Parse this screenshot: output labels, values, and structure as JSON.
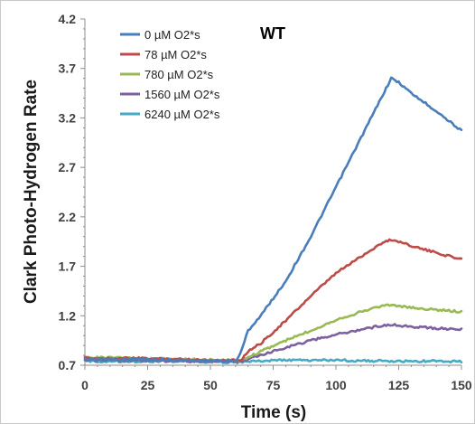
{
  "chart_data": {
    "type": "line",
    "title": "WT",
    "xlabel": "Time (s)",
    "ylabel": "Clark Photo-Hydrogen Rate",
    "xlim": [
      0,
      150
    ],
    "ylim": [
      0.7,
      4.2
    ],
    "xticks": [
      "0",
      "25",
      "50",
      "75",
      "100",
      "125",
      "150"
    ],
    "yticks": [
      "0.7",
      "1.2",
      "1.7",
      "2.2",
      "2.7",
      "3.2",
      "3.7",
      "4.2"
    ],
    "grid": false,
    "legend_position": "top-left",
    "series": [
      {
        "name": "0 µM O2*s",
        "color": "#4a7ebb",
        "points": [
          [
            0,
            0.76
          ],
          [
            20,
            0.76
          ],
          [
            40,
            0.75
          ],
          [
            55,
            0.74
          ],
          [
            60,
            0.74
          ],
          [
            62,
            0.82
          ],
          [
            65,
            1.05
          ],
          [
            70,
            1.2
          ],
          [
            80,
            1.55
          ],
          [
            90,
            2.0
          ],
          [
            100,
            2.5
          ],
          [
            110,
            3.0
          ],
          [
            118,
            3.4
          ],
          [
            122,
            3.6
          ],
          [
            125,
            3.56
          ],
          [
            130,
            3.45
          ],
          [
            140,
            3.27
          ],
          [
            150,
            3.07
          ]
        ]
      },
      {
        "name": "78 µM O2*s",
        "color": "#be4b48",
        "points": [
          [
            0,
            0.77
          ],
          [
            20,
            0.77
          ],
          [
            40,
            0.76
          ],
          [
            55,
            0.75
          ],
          [
            62,
            0.75
          ],
          [
            65,
            0.84
          ],
          [
            70,
            0.92
          ],
          [
            80,
            1.15
          ],
          [
            90,
            1.4
          ],
          [
            100,
            1.63
          ],
          [
            110,
            1.8
          ],
          [
            118,
            1.93
          ],
          [
            122,
            1.97
          ],
          [
            125,
            1.95
          ],
          [
            135,
            1.87
          ],
          [
            150,
            1.77
          ]
        ]
      },
      {
        "name": "780 µM O2*s",
        "color": "#98b954",
        "points": [
          [
            0,
            0.78
          ],
          [
            20,
            0.77
          ],
          [
            40,
            0.76
          ],
          [
            55,
            0.75
          ],
          [
            62,
            0.75
          ],
          [
            65,
            0.78
          ],
          [
            70,
            0.84
          ],
          [
            80,
            0.95
          ],
          [
            90,
            1.05
          ],
          [
            100,
            1.16
          ],
          [
            110,
            1.24
          ],
          [
            118,
            1.3
          ],
          [
            122,
            1.31
          ],
          [
            130,
            1.28
          ],
          [
            150,
            1.24
          ]
        ]
      },
      {
        "name": "1560 µM O2*s",
        "color": "#7d60a0",
        "points": [
          [
            0,
            0.75
          ],
          [
            20,
            0.75
          ],
          [
            40,
            0.74
          ],
          [
            55,
            0.74
          ],
          [
            62,
            0.74
          ],
          [
            65,
            0.76
          ],
          [
            70,
            0.8
          ],
          [
            80,
            0.88
          ],
          [
            90,
            0.95
          ],
          [
            100,
            1.01
          ],
          [
            110,
            1.06
          ],
          [
            118,
            1.1
          ],
          [
            122,
            1.11
          ],
          [
            130,
            1.09
          ],
          [
            150,
            1.06
          ]
        ]
      },
      {
        "name": "6240 µM O2*s",
        "color": "#46aac5",
        "points": [
          [
            0,
            0.74
          ],
          [
            20,
            0.74
          ],
          [
            40,
            0.74
          ],
          [
            60,
            0.73
          ],
          [
            75,
            0.75
          ],
          [
            100,
            0.75
          ],
          [
            125,
            0.74
          ],
          [
            150,
            0.74
          ]
        ]
      }
    ]
  }
}
